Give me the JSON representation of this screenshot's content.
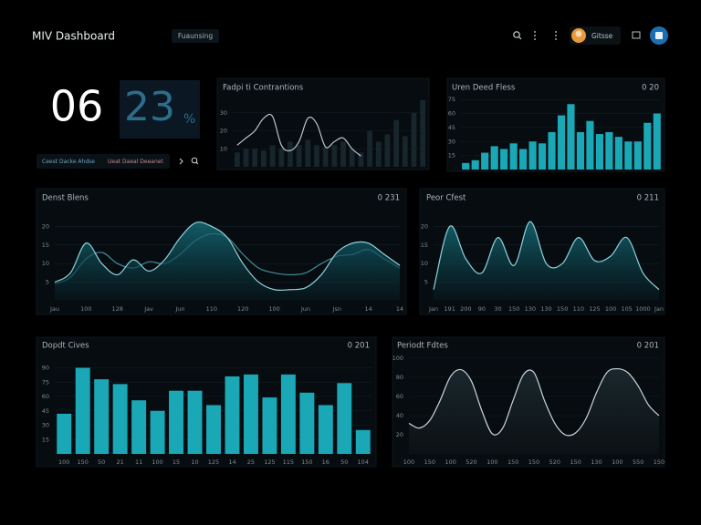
{
  "header": {
    "title": "MIV Dashboard",
    "tab": "Fuaunsing",
    "user": "Gitsse"
  },
  "kpis": [
    {
      "value": "06"
    },
    {
      "value": "23",
      "unit": "%"
    }
  ],
  "filters": [
    "Ceest Dacke Ahdse",
    "Ueat Daeal Deeanet"
  ],
  "chart_data": [
    {
      "type": "combo",
      "title": "Fadpi ti Contrantions",
      "categories": [
        null,
        null,
        null,
        null,
        null,
        null,
        null,
        null,
        null,
        null,
        null,
        null,
        null,
        null,
        null,
        null,
        null,
        null,
        null,
        null,
        null,
        null
      ],
      "series": [
        {
          "kind": "bar",
          "color": "#17252c",
          "values": [
            8,
            10,
            10,
            9,
            12,
            10,
            14,
            12,
            15,
            12,
            11,
            12,
            14,
            10,
            8,
            20,
            14,
            18,
            26,
            17,
            30,
            37
          ]
        },
        {
          "kind": "line",
          "color": "#b9c6cb",
          "values": [
            12,
            16,
            20,
            27,
            28,
            12,
            9,
            14,
            27,
            24,
            11,
            14,
            16,
            10,
            6,
            null,
            null,
            null,
            null,
            null,
            null,
            null
          ]
        }
      ],
      "ylim": [
        0,
        40
      ],
      "yticks": [
        10,
        20,
        30
      ],
      "grid": true
    },
    {
      "type": "bar",
      "title": "Uren Deed Fless",
      "subtitle": "0 20",
      "categories": [
        null,
        null,
        null,
        null,
        null,
        null,
        null,
        null,
        null,
        null,
        null,
        null,
        null,
        null,
        null,
        null,
        null,
        null,
        null,
        null,
        null
      ],
      "series": [
        {
          "color": "#1aa7b6",
          "values": [
            7,
            10,
            18,
            25,
            22,
            28,
            22,
            30,
            28,
            40,
            58,
            70,
            40,
            52,
            38,
            40,
            35,
            30,
            30,
            50,
            60
          ]
        }
      ],
      "ylim": [
        0,
        80
      ],
      "yticks": [
        15,
        30,
        45,
        60,
        75
      ],
      "grid": true
    },
    {
      "type": "area",
      "title": "Denst Blens",
      "subtitle": "0 231",
      "categories": [
        "Jau",
        null,
        "100",
        null,
        "128",
        null,
        "Jav",
        null,
        "Jun",
        null,
        "110",
        null,
        "120",
        null,
        "100",
        null,
        "Jun",
        null,
        "Jsn",
        null,
        "14",
        null,
        "14"
      ],
      "series": [
        {
          "color": "#8fd3dc",
          "values": [
            5,
            7.5,
            15.5,
            10,
            7,
            11,
            8,
            11,
            17,
            21,
            20,
            17,
            10,
            5,
            3,
            3,
            3.5,
            7,
            13,
            15.5,
            15.5,
            12.5,
            9.5
          ]
        },
        {
          "color": "#3f8f9c",
          "values": [
            4.5,
            6.3,
            11.3,
            13,
            10,
            8.8,
            10.5,
            10,
            12.5,
            16.3,
            18,
            17,
            12.5,
            8.8,
            7.5,
            7,
            7.5,
            10,
            12,
            12.5,
            13.8,
            11.3,
            8.8
          ]
        }
      ],
      "ylim": [
        0,
        25
      ],
      "yticks": [
        5,
        10,
        15,
        20
      ],
      "grid": true
    },
    {
      "type": "area",
      "title": "Peor Cfest",
      "subtitle": "0 211",
      "categories": [
        "Jan",
        "191",
        "200",
        "90",
        "30",
        "150",
        "130",
        "130",
        "150",
        "110",
        "125",
        "100",
        "105",
        "1000",
        "Jan"
      ],
      "series": [
        {
          "color": "#8fd3dc",
          "values": [
            3,
            20,
            11.3,
            7.5,
            17,
            9.5,
            21.3,
            10,
            10,
            17,
            10.8,
            12,
            17,
            7.5,
            3
          ]
        }
      ],
      "ylim": [
        0,
        25
      ],
      "yticks": [
        5,
        10,
        15,
        20
      ],
      "grid": true
    },
    {
      "type": "bar",
      "title": "Dopdt Cives",
      "subtitle": "0 201",
      "categories": [
        "100",
        "150",
        "50",
        "21",
        "11",
        "100",
        "15",
        "10",
        "125",
        "14",
        "25",
        "125",
        "115",
        "150",
        "16",
        "50",
        "104"
      ],
      "series": [
        {
          "color": "#1aa7b6",
          "values": [
            42,
            90,
            78,
            73,
            56,
            45,
            66,
            66,
            51,
            81,
            83,
            59,
            83,
            64,
            51,
            74,
            25
          ]
        }
      ],
      "ylim": [
        0,
        100
      ],
      "yticks": [
        15,
        30,
        45,
        60,
        75,
        90
      ],
      "grid": true
    },
    {
      "type": "line",
      "title": "Periodt Fdtes",
      "subtitle": "0 201",
      "categories": [
        "100",
        null,
        "150",
        null,
        "100",
        null,
        "520",
        null,
        "100",
        null,
        "150",
        null,
        "150",
        null,
        "520",
        null,
        "150",
        null,
        "130",
        null,
        "100",
        null,
        "550",
        null,
        "150"
      ],
      "series": [
        {
          "color": "#c9d6dc",
          "values": [
            32,
            27,
            35,
            56,
            81,
            88,
            76,
            45,
            21,
            27,
            56,
            83,
            85,
            56,
            32,
            20,
            22,
            37,
            64,
            85,
            89,
            85,
            71,
            51,
            40
          ]
        }
      ],
      "ylim": [
        0,
        100
      ],
      "yticks": [
        20,
        40,
        60,
        80,
        100
      ],
      "grid": true
    }
  ]
}
